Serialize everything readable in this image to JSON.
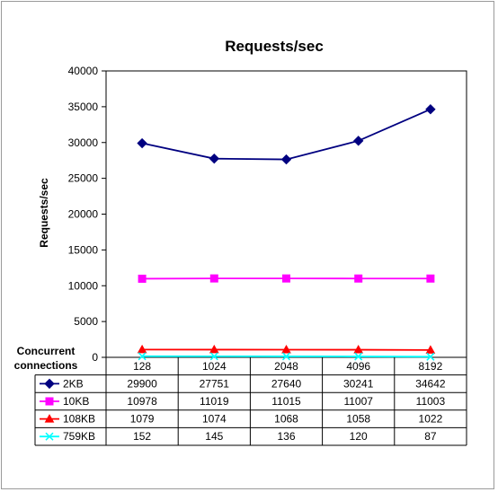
{
  "chart_data": {
    "type": "line",
    "title": "Requests/sec",
    "ylabel": "Requests/sec",
    "xlabel_lines": [
      "Concurrent",
      "connections"
    ],
    "categories": [
      "128",
      "1024",
      "2048",
      "4096",
      "8192"
    ],
    "ylim": [
      0,
      40000
    ],
    "yticks": [
      0,
      5000,
      10000,
      15000,
      20000,
      25000,
      30000,
      35000,
      40000
    ],
    "grid": false,
    "legend": "data-table",
    "series": [
      {
        "name": "2KB",
        "values": [
          29900,
          27751,
          27640,
          30241,
          34642
        ],
        "color": "#000080",
        "marker": "diamond"
      },
      {
        "name": "10KB",
        "values": [
          10978,
          11019,
          11015,
          11007,
          11003
        ],
        "color": "#ff00ff",
        "marker": "square"
      },
      {
        "name": "108KB",
        "values": [
          1079,
          1074,
          1068,
          1058,
          1022
        ],
        "color": "#ff0000",
        "marker": "triangle"
      },
      {
        "name": "759KB",
        "values": [
          152,
          145,
          136,
          120,
          87
        ],
        "color": "#00ffff",
        "marker": "x"
      }
    ]
  }
}
